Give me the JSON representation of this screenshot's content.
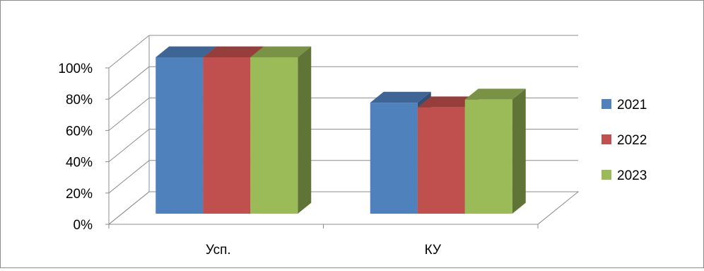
{
  "chart_data": {
    "type": "bar",
    "style": "3d-clustered-column",
    "categories": [
      "Усп.",
      "КУ"
    ],
    "series": [
      {
        "name": "2021",
        "values": [
          100,
          71
        ],
        "color": "#4F81BD"
      },
      {
        "name": "2022",
        "values": [
          100,
          68
        ],
        "color": "#C0504D"
      },
      {
        "name": "2023",
        "values": [
          100,
          73
        ],
        "color": "#9BBB59"
      }
    ],
    "y_ticks": [
      "0%",
      "20%",
      "40%",
      "60%",
      "80%",
      "100%"
    ],
    "ylim": [
      0,
      100
    ],
    "y_unit": "%",
    "grid": true,
    "legend_position": "right"
  }
}
